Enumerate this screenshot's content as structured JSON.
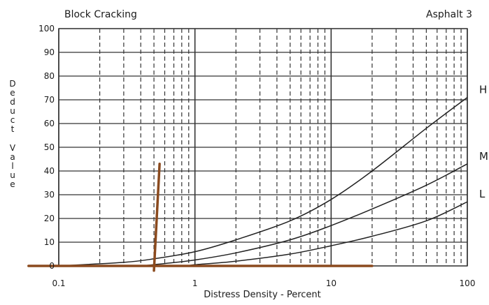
{
  "chart_data": {
    "type": "line",
    "title": "Block Cracking",
    "subtitle": "Asphalt 3",
    "xlabel": "Distress Density - Percent",
    "ylabel": "Deduct Value",
    "x_scale": "log",
    "xlim": [
      0.1,
      100
    ],
    "ylim": [
      0,
      100
    ],
    "x_ticks": [
      0.1,
      1,
      10,
      100
    ],
    "x_tick_labels": [
      "0.1",
      "1",
      "10",
      "100"
    ],
    "y_ticks": [
      0,
      10,
      20,
      30,
      40,
      50,
      60,
      70,
      80,
      90,
      100
    ],
    "y_tick_labels": [
      "0",
      "10",
      "20",
      "30",
      "40",
      "50",
      "60",
      "70",
      "80",
      "90",
      "100"
    ],
    "grid": true,
    "series": [
      {
        "name": "H",
        "x": [
          0.1,
          0.3,
          0.5,
          1,
          2,
          5,
          10,
          20,
          50,
          100
        ],
        "y": [
          0,
          1.5,
          3,
          6,
          11,
          19,
          28,
          40,
          58,
          71
        ]
      },
      {
        "name": "M",
        "x": [
          0.4,
          0.6,
          1,
          2,
          5,
          10,
          20,
          50,
          100
        ],
        "y": [
          0,
          1,
          2.5,
          5.5,
          11,
          17,
          24,
          34,
          43
        ]
      },
      {
        "name": "L",
        "x": [
          0.9,
          1,
          2,
          5,
          10,
          20,
          50,
          100
        ],
        "y": [
          0,
          0.5,
          2,
          5,
          8.5,
          12.5,
          19,
          27
        ]
      }
    ],
    "overlay_lines": [
      {
        "name": "vertical-marker",
        "color": "#8B4A1E",
        "x": [
          0.5,
          0.55
        ],
        "y": [
          -2,
          43
        ]
      },
      {
        "name": "horizontal-marker",
        "color": "#8B4A1E",
        "x": [
          0.06,
          20
        ],
        "y": [
          0,
          0
        ]
      }
    ],
    "colors": {
      "curve": "#222222",
      "grid": "#333333",
      "marker": "#8B4A1E",
      "background": "#ffffff"
    }
  }
}
